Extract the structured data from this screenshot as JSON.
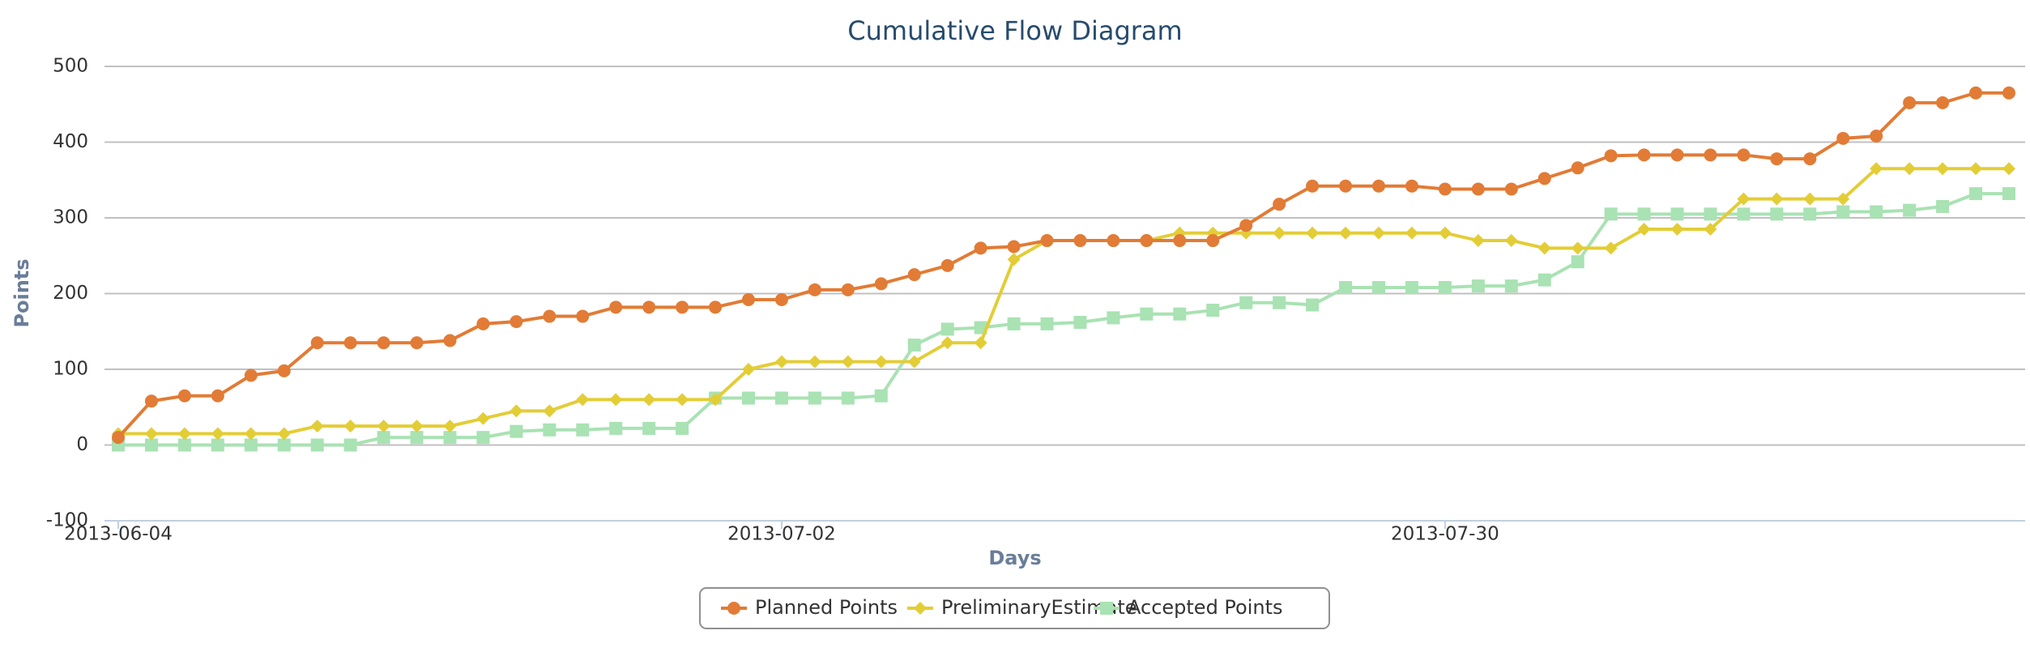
{
  "chart_data": {
    "type": "line",
    "title": "Cumulative Flow Diagram",
    "xlabel": "Days",
    "ylabel": "Points",
    "categories": [
      "2013-06-04",
      null,
      null,
      null,
      null,
      null,
      null,
      null,
      null,
      null,
      null,
      null,
      null,
      null,
      null,
      null,
      null,
      null,
      null,
      null,
      "2013-07-02",
      null,
      null,
      null,
      null,
      null,
      null,
      null,
      null,
      null,
      null,
      null,
      null,
      null,
      null,
      null,
      null,
      null,
      null,
      null,
      "2013-07-30",
      null,
      null,
      null,
      null,
      null,
      null,
      null,
      null,
      null,
      null,
      null,
      null,
      null,
      null,
      null,
      null,
      null
    ],
    "series": [
      {
        "name": "Planned Points",
        "color": "#e27b35",
        "marker": "circle",
        "values": [
          10,
          58,
          65,
          65,
          92,
          98,
          135,
          135,
          135,
          135,
          138,
          160,
          163,
          170,
          170,
          182,
          182,
          182,
          182,
          192,
          192,
          205,
          205,
          213,
          225,
          237,
          260,
          262,
          270,
          270,
          270,
          270,
          270,
          270,
          290,
          318,
          342,
          342,
          342,
          342,
          338,
          338,
          338,
          352,
          366,
          382,
          383,
          383,
          383,
          383,
          378,
          378,
          405,
          408,
          452,
          452,
          465,
          465
        ]
      },
      {
        "name": "PreliminaryEstimate",
        "color": "#e3cd36",
        "marker": "diamond",
        "values": [
          15,
          15,
          15,
          15,
          15,
          15,
          25,
          25,
          25,
          25,
          25,
          35,
          45,
          45,
          60,
          60,
          60,
          60,
          60,
          100,
          110,
          110,
          110,
          110,
          110,
          135,
          135,
          245,
          270,
          270,
          270,
          270,
          280,
          280,
          280,
          280,
          280,
          280,
          280,
          280,
          280,
          270,
          270,
          260,
          260,
          260,
          285,
          285,
          285,
          325,
          325,
          325,
          325,
          365,
          365,
          365,
          365,
          365
        ]
      },
      {
        "name": "Accepted Points",
        "color": "#a9e2b3",
        "marker": "square",
        "values": [
          0,
          0,
          0,
          0,
          0,
          0,
          0,
          0,
          10,
          10,
          10,
          10,
          18,
          20,
          20,
          22,
          22,
          22,
          62,
          62,
          62,
          62,
          62,
          65,
          132,
          153,
          155,
          160,
          160,
          162,
          168,
          173,
          173,
          178,
          188,
          188,
          185,
          208,
          208,
          208,
          208,
          210,
          210,
          218,
          242,
          305,
          305,
          305,
          305,
          305,
          305,
          305,
          308,
          308,
          310,
          315,
          332,
          332
        ]
      }
    ],
    "ylim": [
      -100,
      500
    ],
    "yticks": [
      -100,
      0,
      100,
      200,
      300,
      400,
      500
    ],
    "grid": true,
    "legend": "bottom"
  }
}
